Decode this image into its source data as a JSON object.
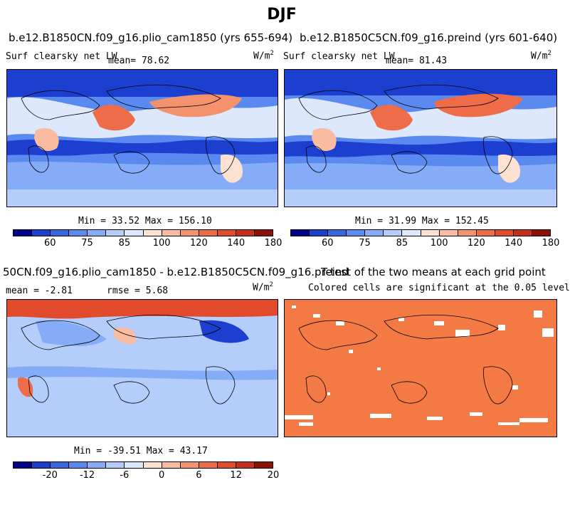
{
  "title": "DJF",
  "panels": [
    {
      "id": "top-left",
      "title": "b.e12.B1850CN.f09_g16.plio_cam1850 (yrs 655-694)",
      "variable": "Surf clearsky net LW",
      "mean_label": "mean=  78.62",
      "units": "W/m",
      "units_sup": "2",
      "minmax": "Min =  33.52 Max = 156.10"
    },
    {
      "id": "top-right",
      "title": "b.e12.B1850C5CN.f09_g16.preind (yrs 601-640)",
      "variable": "Surf clearsky net LW",
      "mean_label": "mean=  81.43",
      "units": "W/m",
      "units_sup": "2",
      "minmax": "Min =  31.99 Max = 152.45"
    },
    {
      "id": "bottom-left",
      "title": "50CN.f09_g16.plio_cam1850 - b.e12.B1850C5CN.f09_g16.preind",
      "mean_label": "mean =  -2.81",
      "rmse_label": "rmse =   5.68",
      "units": "W/m",
      "units_sup": "2",
      "minmax": "Min = -39.51 Max =  43.17"
    },
    {
      "id": "bottom-right",
      "title": "T-test of the two means at each grid point",
      "subtitle": "Colored cells are significant at the 0.05 level"
    }
  ],
  "colorbar_abs": {
    "labels": [
      "60",
      "75",
      "85",
      "100",
      "120",
      "140",
      "180"
    ],
    "colors": [
      "#00008b",
      "#1d3fcf",
      "#3767e0",
      "#5a8af0",
      "#86abf7",
      "#b4cdfb",
      "#dde8fc",
      "#fde2d2",
      "#f9bca0",
      "#f4926e",
      "#ee6c48",
      "#e24a2c",
      "#c62d1a",
      "#8e1108"
    ]
  },
  "colorbar_diff": {
    "labels": [
      "-20",
      "-12",
      "-6",
      "0",
      "6",
      "12",
      "20"
    ],
    "colors": [
      "#00008b",
      "#1d3fcf",
      "#3767e0",
      "#5a8af0",
      "#86abf7",
      "#b4cdfb",
      "#dde8fc",
      "#fde2d2",
      "#f9bca0",
      "#f4926e",
      "#ee6c48",
      "#e24a2c",
      "#c62d1a",
      "#8e1108"
    ]
  },
  "colors": {
    "ttest_fill": "#f47a45",
    "ocean_band": "#2b5fd6",
    "map_background": "#86abf7"
  }
}
